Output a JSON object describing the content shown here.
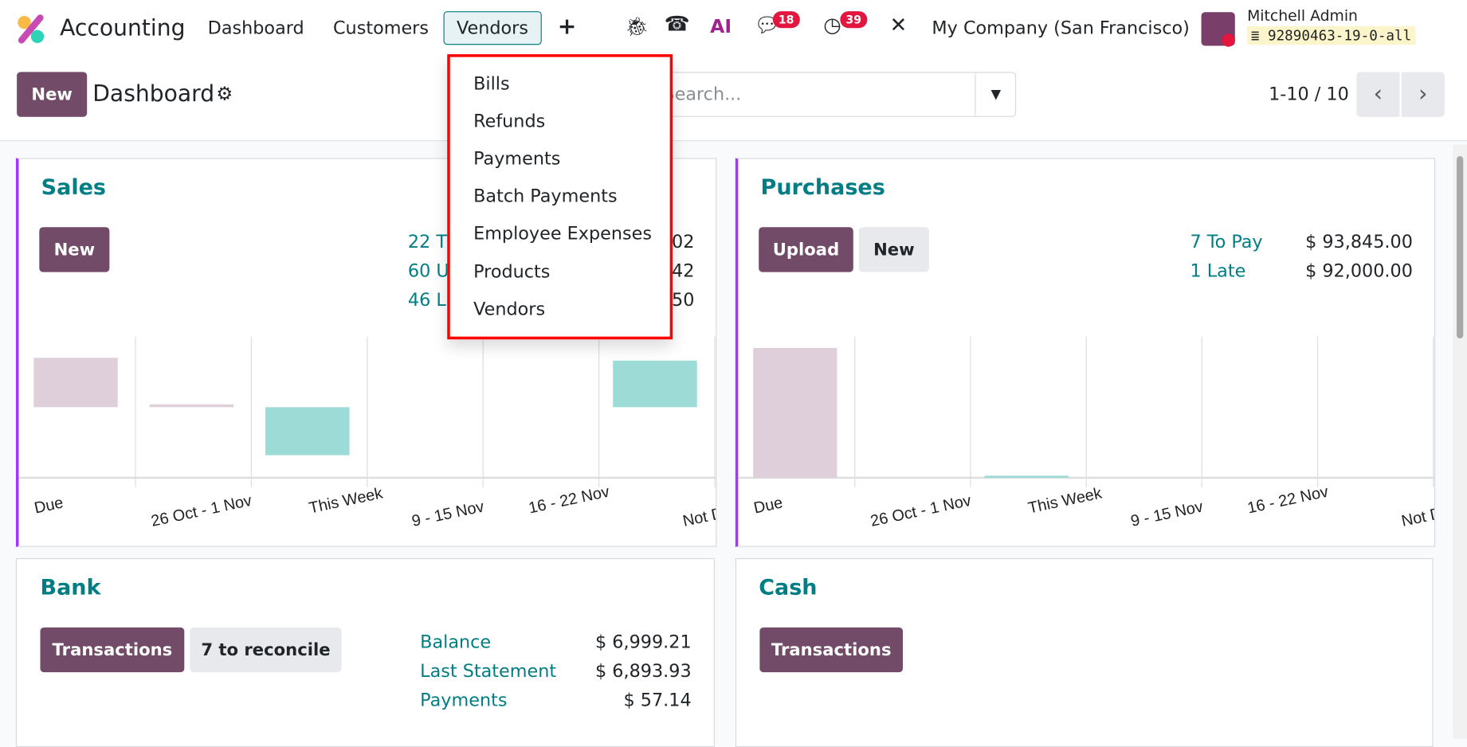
{
  "nav": {
    "app": "Accounting",
    "items": [
      "Dashboard",
      "Customers",
      "Vendors"
    ],
    "active": "Vendors",
    "chat_badge": "18",
    "activity_badge": "39",
    "company": "My Company (San Francisco)",
    "user": "Mitchell Admin",
    "db": "92890463-19-0-all"
  },
  "control": {
    "new": "New",
    "title": "Dashboard",
    "search_placeholder": "Search...",
    "pager": "1-10 / 10"
  },
  "vendors_menu": [
    "Bills",
    "Refunds",
    "Payments",
    "Batch Payments",
    "Employee Expenses",
    "Products",
    "Vendors"
  ],
  "sales": {
    "title": "Sales",
    "new": "New",
    "stats_partial": [
      {
        "label": "22 T",
        "amount": "02"
      },
      {
        "label": "60 U",
        "amount": "42"
      },
      {
        "label": "46 L",
        "amount": "50"
      }
    ]
  },
  "purchases": {
    "title": "Purchases",
    "upload": "Upload",
    "new": "New",
    "stats": [
      {
        "label": "7 To Pay",
        "amount": "$ 93,845.00"
      },
      {
        "label": "1 Late",
        "amount": "$ 92,000.00"
      }
    ]
  },
  "bank": {
    "title": "Bank",
    "transactions": "Transactions",
    "reconcile": "7 to reconcile",
    "stats": [
      {
        "label": "Balance",
        "amount": "$ 6,999.21"
      },
      {
        "label": "Last Statement",
        "amount": "$ 6,893.93"
      },
      {
        "label": "Payments",
        "amount": "$ 57.14"
      }
    ]
  },
  "cash": {
    "title": "Cash",
    "transactions": "Transactions"
  },
  "colors": {
    "brand": "#714b67",
    "teal": "#017e84",
    "past": "#dfcfda",
    "future": "#9ddcd6",
    "accent_border": "#a238ff"
  },
  "chart_data": [
    {
      "type": "bar",
      "title": "",
      "categories": [
        "Due",
        "26 Oct - 1 Nov",
        "This Week",
        "9 - 15 Nov",
        "16 - 22 Nov",
        "Not Due"
      ],
      "series": [
        {
          "values": [
            [
              0.5,
              0.85
            ],
            [
              0.5,
              0.52
            ],
            [
              0.16,
              0.5
            ],
            null,
            null,
            [
              0.5,
              0.83
            ]
          ],
          "colors": [
            "past",
            "past",
            "future",
            "future",
            "future",
            "future"
          ]
        }
      ],
      "grid": true
    },
    {
      "type": "bar",
      "title": "",
      "categories": [
        "Due",
        "26 Oct - 1 Nov",
        "This Week",
        "9 - 15 Nov",
        "16 - 22 Nov",
        "Not Due"
      ],
      "series": [
        {
          "values": [
            [
              0,
              0.92
            ],
            null,
            [
              0,
              0.015
            ],
            null,
            null,
            null
          ],
          "colors": [
            "past",
            "past",
            "future",
            "future",
            "future",
            "future"
          ]
        }
      ],
      "grid": true
    }
  ]
}
